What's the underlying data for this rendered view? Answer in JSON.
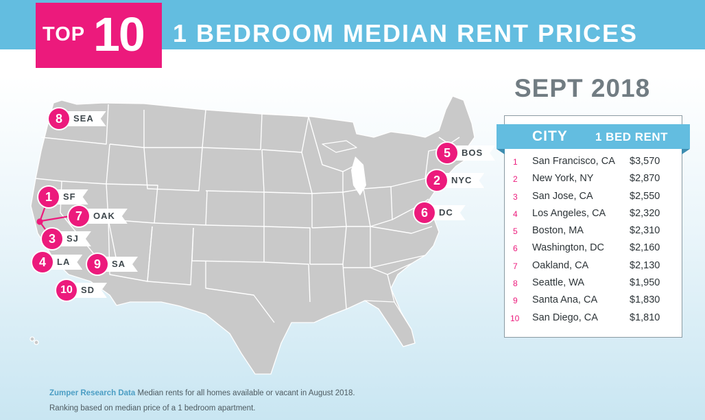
{
  "header": {
    "top_word": "TOP",
    "top_number": "10",
    "title": "1 BEDROOM MEDIAN RENT PRICES",
    "date": "SEPT 2018"
  },
  "colors": {
    "brand_pink": "#ec1a7c",
    "header_blue": "#63bde0",
    "map_state_fill": "#c9c9c9",
    "map_state_border": "#ffffff"
  },
  "markers": [
    {
      "rank": "1",
      "code": "SF"
    },
    {
      "rank": "2",
      "code": "NYC"
    },
    {
      "rank": "3",
      "code": "SJ"
    },
    {
      "rank": "4",
      "code": "LA"
    },
    {
      "rank": "5",
      "code": "BOS"
    },
    {
      "rank": "6",
      "code": "DC"
    },
    {
      "rank": "7",
      "code": "OAK"
    },
    {
      "rank": "8",
      "code": "SEA"
    },
    {
      "rank": "9",
      "code": "SA"
    },
    {
      "rank": "10",
      "code": "SD"
    }
  ],
  "table": {
    "col_city": "CITY",
    "col_rent": "1 BED RENT",
    "rows": [
      {
        "rank": "1",
        "city": "San Francisco, CA",
        "rent": "$3,570"
      },
      {
        "rank": "2",
        "city": "New York, NY",
        "rent": "$2,870"
      },
      {
        "rank": "3",
        "city": "San Jose, CA",
        "rent": "$2,550"
      },
      {
        "rank": "4",
        "city": "Los Angeles, CA",
        "rent": "$2,320"
      },
      {
        "rank": "5",
        "city": "Boston, MA",
        "rent": "$2,310"
      },
      {
        "rank": "6",
        "city": "Washington, DC",
        "rent": "$2,160"
      },
      {
        "rank": "7",
        "city": "Oakland, CA",
        "rent": "$2,130"
      },
      {
        "rank": "8",
        "city": "Seattle, WA",
        "rent": "$1,950"
      },
      {
        "rank": "9",
        "city": "Santa Ana, CA",
        "rent": "$1,830"
      },
      {
        "rank": "10",
        "city": "San Diego, CA",
        "rent": "$1,810"
      }
    ]
  },
  "footer": {
    "source": "Zumper Research Data",
    "note": "Median rents for all homes available or vacant in August 2018.",
    "note2": "Ranking based on median price of a 1 bedroom apartment."
  }
}
